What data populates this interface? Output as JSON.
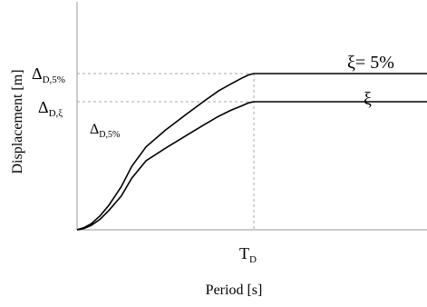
{
  "chart_data": {
    "type": "line",
    "title": "",
    "xlabel": "Period [s]",
    "ylabel": "Displacement [m]",
    "grid": false,
    "x_ticks": [
      {
        "label_main": "T",
        "label_sub": "D"
      }
    ],
    "y_ticks": [
      {
        "label_main": "Δ",
        "label_sub": "D,5%"
      },
      {
        "label_main": "Δ",
        "label_sub": "D,ξ"
      }
    ],
    "series": [
      {
        "name": "ξ= 5%",
        "x": [
          0,
          0.01,
          0.04,
          0.08,
          0.13,
          0.18,
          0.25,
          0.31,
          0.39,
          0.5,
          0.62,
          0.72,
          0.8,
          0.87,
          0.93,
          0.97,
          1.0,
          1.5,
          2.0
        ],
        "y": [
          0,
          0.004,
          0.014,
          0.039,
          0.089,
          0.157,
          0.276,
          0.407,
          0.531,
          0.638,
          0.741,
          0.825,
          0.889,
          0.934,
          0.97,
          0.991,
          1.0,
          1.0,
          1.0
        ]
      },
      {
        "name": "ξ",
        "x": [
          0,
          0.01,
          0.04,
          0.08,
          0.13,
          0.18,
          0.25,
          0.31,
          0.39,
          0.5,
          0.62,
          0.72,
          0.8,
          0.87,
          0.93,
          0.97,
          1.0,
          1.5,
          2.0
        ],
        "y": [
          0,
          0.002,
          0.009,
          0.028,
          0.067,
          0.124,
          0.216,
          0.331,
          0.442,
          0.522,
          0.605,
          0.673,
          0.726,
          0.765,
          0.793,
          0.812,
          0.82,
          0.82,
          0.82
        ]
      }
    ],
    "annotations": [
      {
        "label_main": "Δ",
        "label_sub": "D,5%"
      }
    ]
  }
}
